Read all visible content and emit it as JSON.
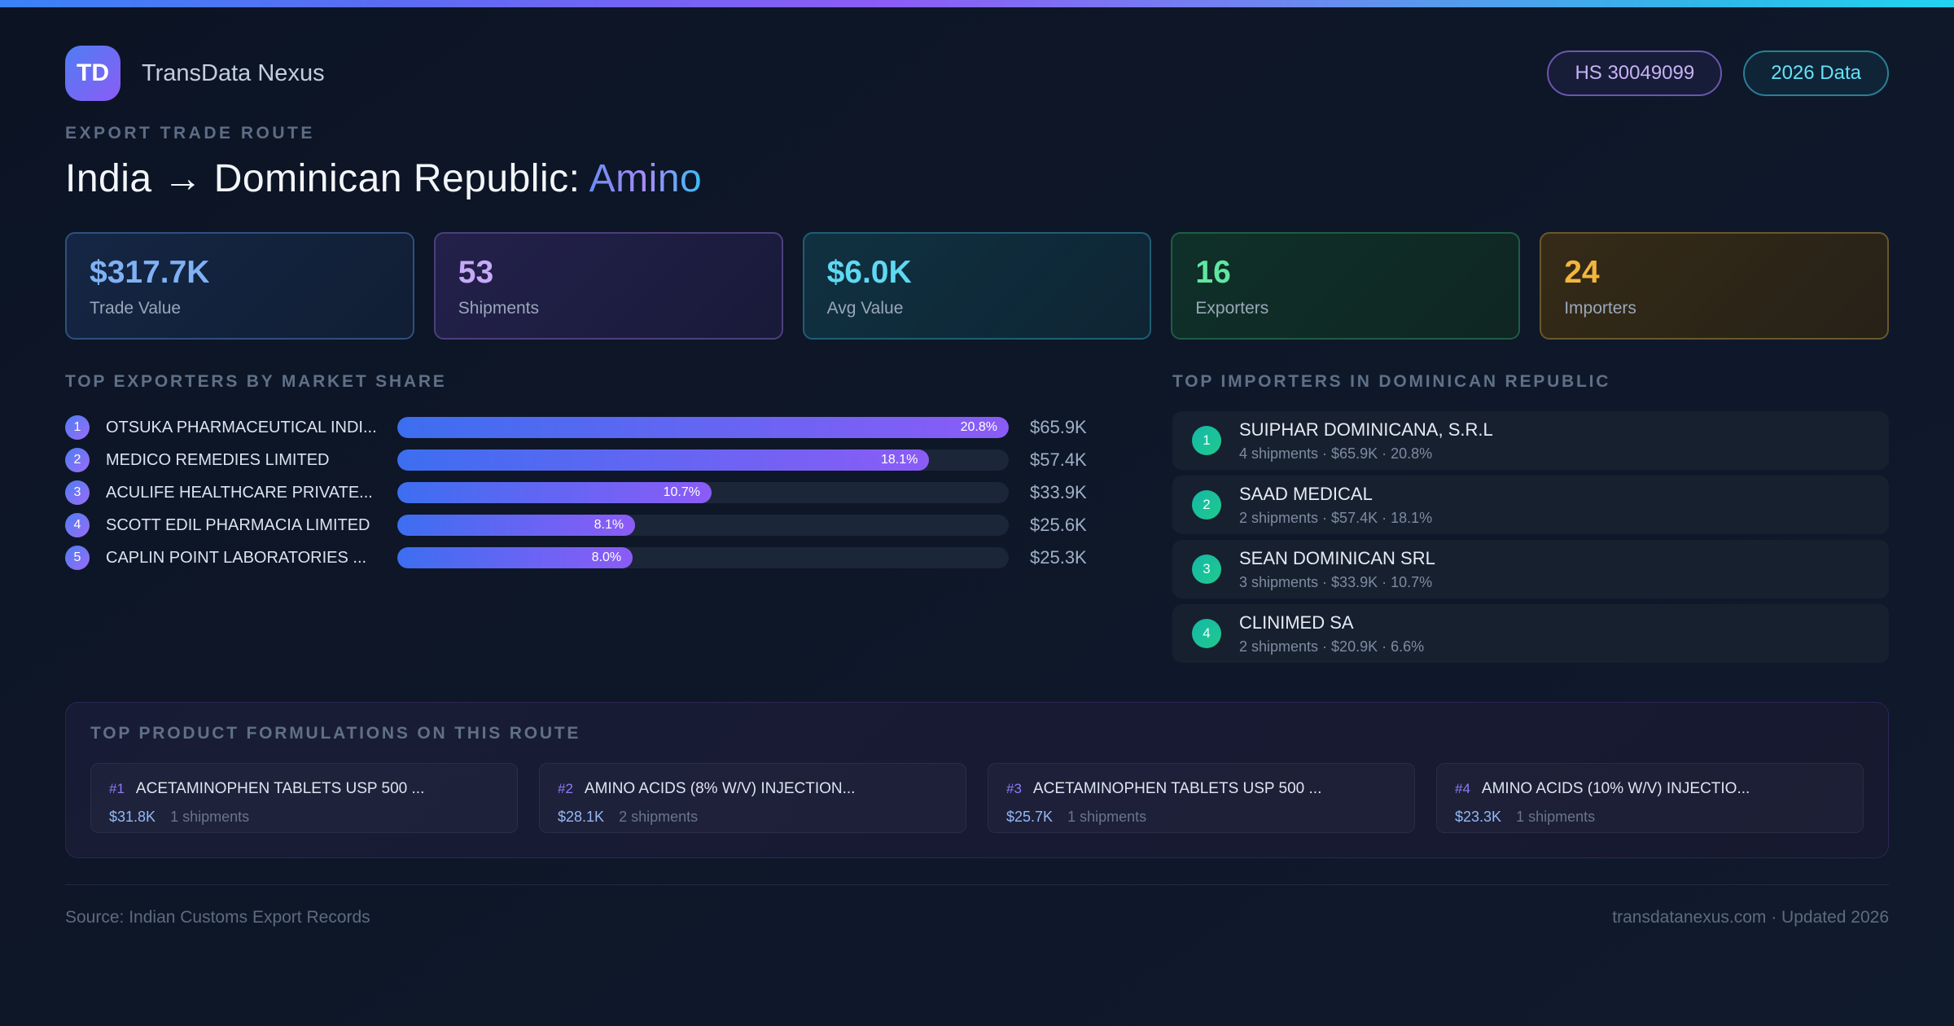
{
  "colors": {
    "accent_blue": "#3b82f6",
    "accent_purple": "#8b5cf6",
    "accent_cyan": "#22d3ee",
    "accent_green": "#10b981",
    "accent_amber": "#f59e0b",
    "page_background": "#0e1728"
  },
  "topbar": {
    "logo_initials": "TD",
    "app_name": "TransData Nexus",
    "badges": [
      {
        "label": "HS 30049099",
        "theme": "purple"
      },
      {
        "label": "2026 Data",
        "theme": "cyan"
      }
    ]
  },
  "header": {
    "eyebrow": "EXPORT TRADE ROUTE",
    "title_main": "India → Dominican Republic:",
    "title_accent": "Amino"
  },
  "stats": [
    {
      "value": "$317.7K",
      "label": "Trade Value",
      "theme": "blue"
    },
    {
      "value": "53",
      "label": "Shipments",
      "theme": "purple"
    },
    {
      "value": "$6.0K",
      "label": "Avg Value",
      "theme": "cyan"
    },
    {
      "value": "16",
      "label": "Exporters",
      "theme": "green"
    },
    {
      "value": "24",
      "label": "Importers",
      "theme": "amber"
    }
  ],
  "exporters": {
    "section_title": "TOP EXPORTERS BY MARKET SHARE",
    "items": [
      {
        "rank": "1",
        "name": "OTSUKA PHARMACEUTICAL INDI...",
        "share_label": "20.8%",
        "value": "$65.9K",
        "bar_pct": 100
      },
      {
        "rank": "2",
        "name": "MEDICO REMEDIES LIMITED",
        "share_label": "18.1%",
        "value": "$57.4K",
        "bar_pct": 87
      },
      {
        "rank": "3",
        "name": "ACULIFE HEALTHCARE PRIVATE...",
        "share_label": "10.7%",
        "value": "$33.9K",
        "bar_pct": 51.4
      },
      {
        "rank": "4",
        "name": "SCOTT EDIL PHARMACIA LIMITED",
        "share_label": "8.1%",
        "value": "$25.6K",
        "bar_pct": 38.9
      },
      {
        "rank": "5",
        "name": "CAPLIN POINT LABORATORIES ...",
        "share_label": "8.0%",
        "value": "$25.3K",
        "bar_pct": 38.5
      }
    ]
  },
  "importers": {
    "section_title": "TOP IMPORTERS IN DOMINICAN REPUBLIC",
    "items": [
      {
        "rank": "1",
        "name": "SUIPHAR DOMINICANA, S.R.L",
        "meta": "4 shipments · $65.9K · 20.8%"
      },
      {
        "rank": "2",
        "name": "SAAD MEDICAL",
        "meta": "2 shipments · $57.4K · 18.1%"
      },
      {
        "rank": "3",
        "name": "SEAN DOMINICAN SRL",
        "meta": "3 shipments · $33.9K · 10.7%"
      },
      {
        "rank": "4",
        "name": "CLINIMED SA",
        "meta": "2 shipments · $20.9K · 6.6%"
      }
    ]
  },
  "products": {
    "section_title": "TOP PRODUCT FORMULATIONS ON THIS ROUTE",
    "items": [
      {
        "rank_label": "#1",
        "name": "ACETAMINOPHEN TABLETS USP 500 ...",
        "value": "$31.8K",
        "shipments": "1 shipments"
      },
      {
        "rank_label": "#2",
        "name": "AMINO ACIDS (8% W/V) INJECTION...",
        "value": "$28.1K",
        "shipments": "2 shipments"
      },
      {
        "rank_label": "#3",
        "name": "ACETAMINOPHEN TABLETS USP 500 ...",
        "value": "$25.7K",
        "shipments": "1 shipments"
      },
      {
        "rank_label": "#4",
        "name": "AMINO ACIDS (10% W/V) INJECTIO...",
        "value": "$23.3K",
        "shipments": "1 shipments"
      }
    ]
  },
  "footer": {
    "source": "Source: Indian Customs Export Records",
    "site": "transdatanexus.com · Updated 2026"
  }
}
